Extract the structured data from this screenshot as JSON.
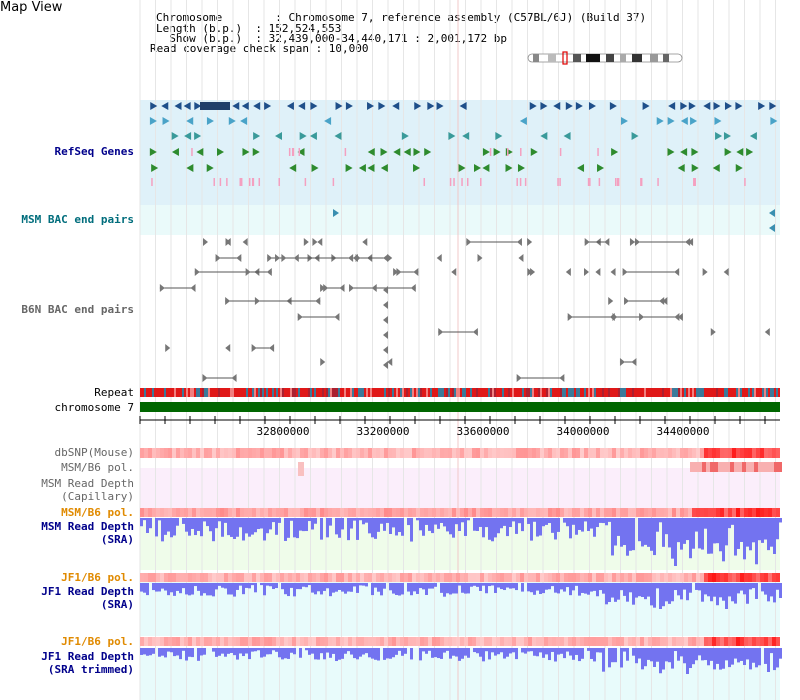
{
  "title": "Map View",
  "header": {
    "chromosome_line": "Chromosome        : Chromosome 7, reference assembly (C57BL/6J) (Build 37)",
    "length_line": "Length (b.p.)  : 152,524,553",
    "show_line": "  Show (b.p.)  : 32,439,000-34,440,171 : 2,001,172 bp",
    "coverage_line": "Read coverage check span : 10,000"
  },
  "tracks": {
    "refseq": "RefSeq Genes",
    "msm_bac": "MSM BAC end pairs",
    "b6n_bac": "B6N BAC end pairs",
    "repeat": "Repeat",
    "chromosome": "chromosome 7",
    "dbsnp": "dbSNP(Mouse)",
    "msm_b6_pol_1": "MSM/B6 pol.",
    "msm_depth_cap_1": "MSM Read Depth",
    "msm_depth_cap_2": "(Capillary)",
    "msm_b6_pol_2": "MSM/B6 pol.",
    "msm_depth_sra_1": "MSM Read Depth",
    "msm_depth_sra_2": "(SRA)",
    "jf1_b6_pol_1": "JF1/B6 pol.",
    "jf1_depth_sra_1": "JF1 Read Depth",
    "jf1_depth_sra_2": "(SRA)",
    "jf1_b6_pol_2": "JF1/B6 pol.",
    "jf1_depth_trim_1": "JF1 Read Depth",
    "jf1_depth_trim_2": "(SRA trimmed)"
  },
  "axis": {
    "ticks": [
      "32800000",
      "33200000",
      "33600000",
      "34000000",
      "34400000"
    ]
  },
  "colors": {
    "refseq_bg": "#dff1f9",
    "bac_bg": "#eafafa",
    "chromosome_bar": "#006600",
    "depth_bar": "#7373f0",
    "pol_low": "#fbd2d2",
    "pol_high": "#e80000"
  }
}
